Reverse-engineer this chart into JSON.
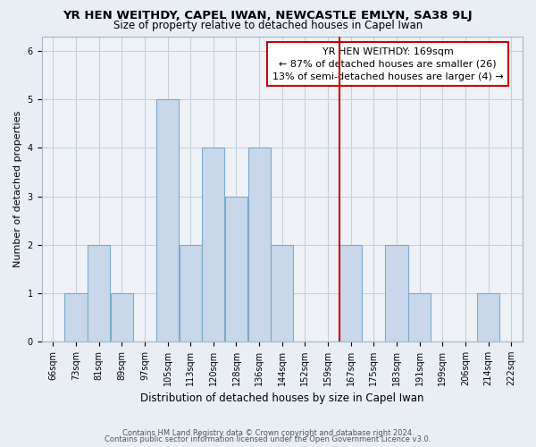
{
  "title": "YR HEN WEITHDY, CAPEL IWAN, NEWCASTLE EMLYN, SA38 9LJ",
  "subtitle": "Size of property relative to detached houses in Capel Iwan",
  "xlabel": "Distribution of detached houses by size in Capel Iwan",
  "ylabel": "Number of detached properties",
  "bin_labels": [
    "66sqm",
    "73sqm",
    "81sqm",
    "89sqm",
    "97sqm",
    "105sqm",
    "113sqm",
    "120sqm",
    "128sqm",
    "136sqm",
    "144sqm",
    "152sqm",
    "159sqm",
    "167sqm",
    "175sqm",
    "183sqm",
    "191sqm",
    "199sqm",
    "206sqm",
    "214sqm",
    "222sqm"
  ],
  "bar_values": [
    0,
    1,
    2,
    1,
    0,
    5,
    2,
    4,
    3,
    4,
    2,
    0,
    0,
    2,
    0,
    2,
    1,
    0,
    0,
    1,
    0
  ],
  "bar_color": "#c8d8ea",
  "bar_edge_color": "#7aaace",
  "marker_color": "#cc0000",
  "annotation_title": "YR HEN WEITHDY: 169sqm",
  "annotation_line1": "← 87% of detached houses are smaller (26)",
  "annotation_line2": "13% of semi-detached houses are larger (4) →",
  "annotation_box_color": "#ffffff",
  "annotation_box_edge": "#cc0000",
  "ylim": [
    0,
    6.3
  ],
  "yticks": [
    0,
    1,
    2,
    3,
    4,
    5,
    6
  ],
  "footnote1": "Contains HM Land Registry data © Crown copyright and database right 2024.",
  "footnote2": "Contains public sector information licensed under the Open Government Licence v3.0.",
  "bg_color": "#e8eef4",
  "plot_bg_color": "#eef2f7",
  "grid_color": "#c5d0dc",
  "title_fontsize": 9.5,
  "subtitle_fontsize": 8.5,
  "xlabel_fontsize": 8.5,
  "ylabel_fontsize": 8,
  "tick_fontsize": 7,
  "footnote_fontsize": 6,
  "ann_fontsize": 8
}
